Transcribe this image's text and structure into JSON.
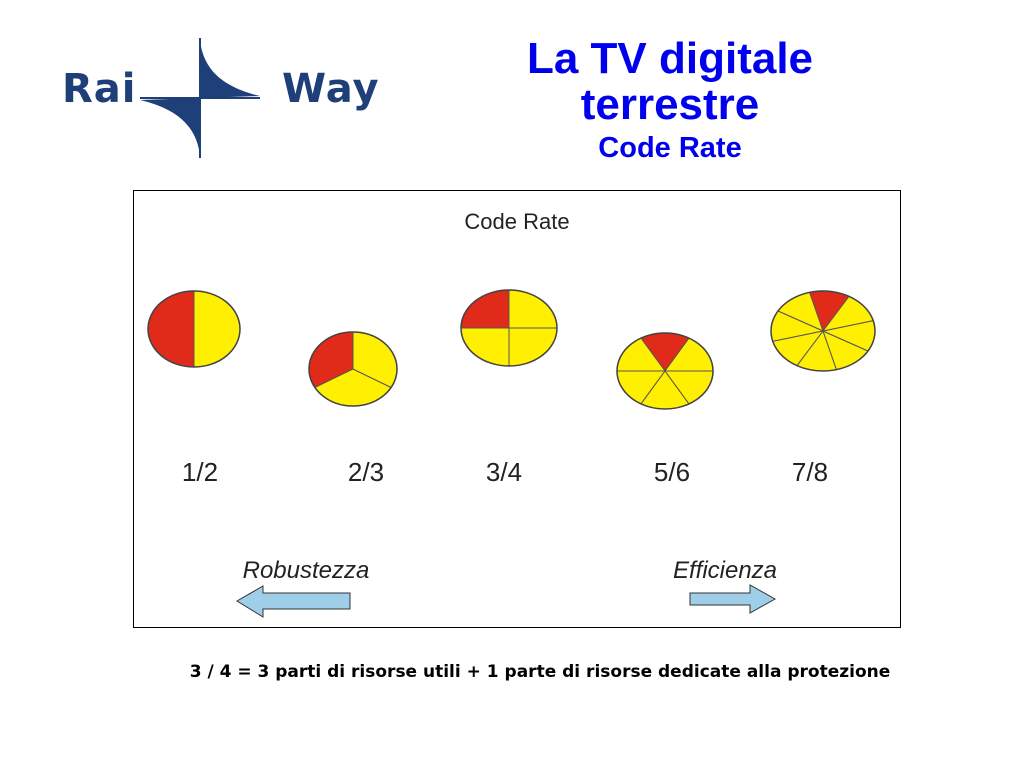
{
  "logo": {
    "left_word": "Rai",
    "right_word": "Way",
    "color": "#1f3f79"
  },
  "title": {
    "line1": "La TV digitale",
    "line2": "terrestre",
    "subtitle": "Code Rate",
    "color": "#0000ee"
  },
  "figure": {
    "heading": "Code Rate",
    "colors": {
      "red": "#e02a1a",
      "yellow": "#ffef00"
    },
    "rates": [
      {
        "label": "1/2",
        "useful": 1,
        "total": 2
      },
      {
        "label": "2/3",
        "useful": 2,
        "total": 3
      },
      {
        "label": "3/4",
        "useful": 3,
        "total": 4
      },
      {
        "label": "5/6",
        "useful": 5,
        "total": 6
      },
      {
        "label": "7/8",
        "useful": 7,
        "total": 8
      }
    ],
    "left_arrow_label": "Robustezza",
    "right_arrow_label": "Efficienza",
    "arrow_color": "#9fcfe8"
  },
  "caption": "3 / 4 = 3 parti di risorse utili + 1 parte di risorse dedicate alla protezione"
}
